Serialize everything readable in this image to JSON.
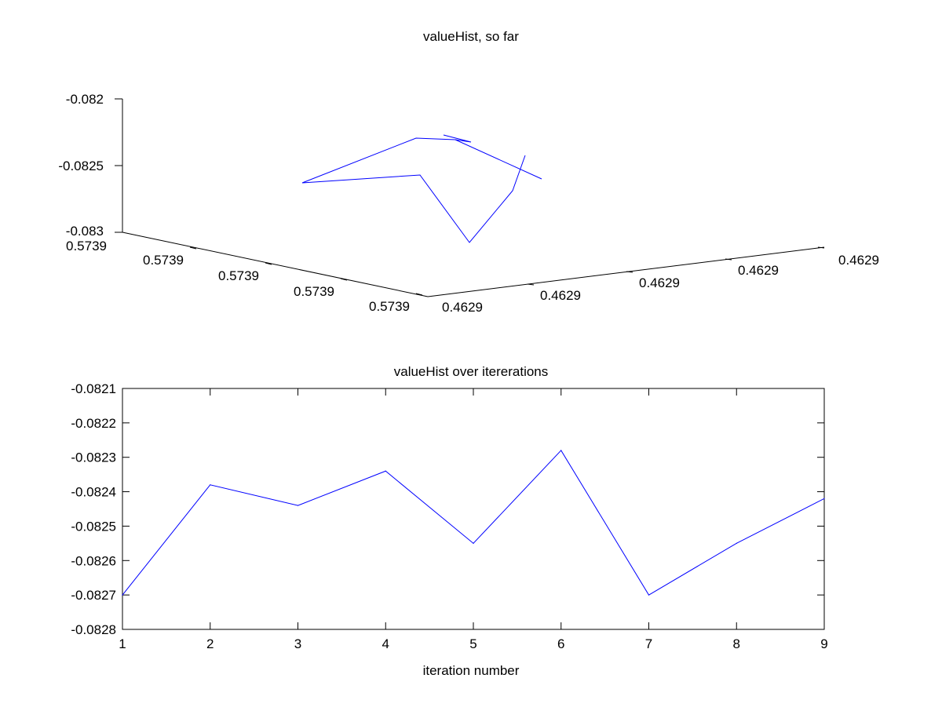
{
  "chart_data": [
    {
      "type": "line3d",
      "title": "valueHist, so far",
      "xlabel": "",
      "ylabel": "",
      "zlabel": "",
      "z_tick_labels": [
        "-0.082",
        "-0.0825",
        "-0.083"
      ],
      "x_tick_labels": [
        "0.5739",
        "0.5739",
        "0.5739",
        "0.5739",
        "0.5739"
      ],
      "y_tick_labels": [
        "0.4629",
        "0.4629",
        "0.4629",
        "0.4629",
        "0.4629"
      ],
      "zlim": [
        -0.083,
        -0.082
      ],
      "grid": false,
      "series": [
        {
          "color": "#0000ff",
          "values": [
            -0.0827,
            -0.08238,
            -0.08244,
            -0.08234,
            -0.08255,
            -0.08228,
            -0.0827,
            -0.08255,
            -0.08242
          ]
        }
      ]
    },
    {
      "type": "line",
      "title": "valueHist over itererations",
      "xlabel": "iteration number",
      "ylabel": "",
      "xlim": [
        1,
        9
      ],
      "ylim": [
        -0.0828,
        -0.0821
      ],
      "x_tick_labels": [
        "1",
        "2",
        "3",
        "4",
        "5",
        "6",
        "7",
        "8",
        "9"
      ],
      "y_tick_labels": [
        "-0.0821",
        "-0.0822",
        "-0.0823",
        "-0.0824",
        "-0.0825",
        "-0.0826",
        "-0.0827",
        "-0.0828"
      ],
      "grid": false,
      "series": [
        {
          "color": "#0000ff",
          "x": [
            1,
            2,
            3,
            4,
            5,
            6,
            7,
            8,
            9
          ],
          "values": [
            -0.0827,
            -0.08238,
            -0.08244,
            -0.08234,
            -0.08255,
            -0.08228,
            -0.0827,
            -0.08255,
            -0.08242
          ]
        }
      ]
    }
  ]
}
